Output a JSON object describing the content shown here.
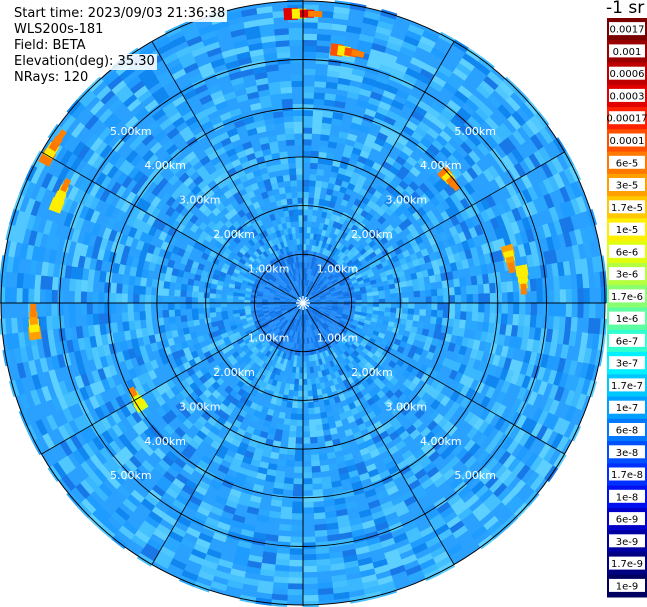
{
  "header": {
    "start_time": "Start time: 2023/09/03 21:36:38",
    "instrument": "WLS200s-181",
    "field": "Field: BETA",
    "elevation": "Elevation(deg): 35.30",
    "nrays": "NRays: 120"
  },
  "colorbar": {
    "unit": "-1 sr",
    "labels": [
      "0.0017",
      "0.001",
      "0.0006",
      "0.0003",
      "0.00017",
      "0.0001",
      "6e-5",
      "3e-5",
      "1.7e-5",
      "1e-5",
      "6e-6",
      "3e-6",
      "1.7e-6",
      "1e-6",
      "6e-7",
      "3e-7",
      "1.7e-7",
      "1e-7",
      "6e-8",
      "3e-8",
      "1.7e-8",
      "1e-8",
      "6e-9",
      "3e-9",
      "1.7e-9",
      "1e-9"
    ],
    "colors": [
      "#7a0000",
      "#9a0000",
      "#c00000",
      "#e00000",
      "#ff2000",
      "#ff5000",
      "#ff7800",
      "#ffa000",
      "#ffc800",
      "#ffee00",
      "#e0ff10",
      "#b4ff40",
      "#88ff70",
      "#5cffa0",
      "#30ffd0",
      "#00f0ff",
      "#00c8ff",
      "#00a0ff",
      "#0078ff",
      "#0050ff",
      "#0030ff",
      "#0010ee",
      "#0000c8",
      "#0000a0",
      "#000080",
      "#000060"
    ]
  },
  "chart_data": {
    "type": "heatmap",
    "projection": "polar (PPI scan)",
    "rings_km": [
      1,
      2,
      3,
      4,
      5
    ],
    "ring_labels": [
      "1.00km",
      "2.00km",
      "3.00km",
      "4.00km",
      "5.00km"
    ],
    "max_range_km": 6.2,
    "spokes_deg": 30,
    "background_level": "1.7e-7 to 1e-7",
    "near_field_level": "1e-7 to 6e-8",
    "features": [
      {
        "az_deg": 0,
        "range_km": 5.9,
        "level": "0.0003"
      },
      {
        "az_deg": 10,
        "range_km": 5.2,
        "level": "0.0001"
      },
      {
        "az_deg": 50,
        "range_km": 3.9,
        "level": "6e-5"
      },
      {
        "az_deg": 78,
        "range_km": 4.3,
        "level": "3e-5"
      },
      {
        "az_deg": 84,
        "range_km": 4.5,
        "level": "1e-5"
      },
      {
        "az_deg": 266,
        "range_km": 5.5,
        "level": "3e-5"
      },
      {
        "az_deg": 294,
        "range_km": 5.4,
        "level": "1e-5"
      },
      {
        "az_deg": 240,
        "range_km": 3.9,
        "level": "6e-6"
      },
      {
        "az_deg": 302,
        "range_km": 6.0,
        "level": "6e-5"
      }
    ]
  }
}
